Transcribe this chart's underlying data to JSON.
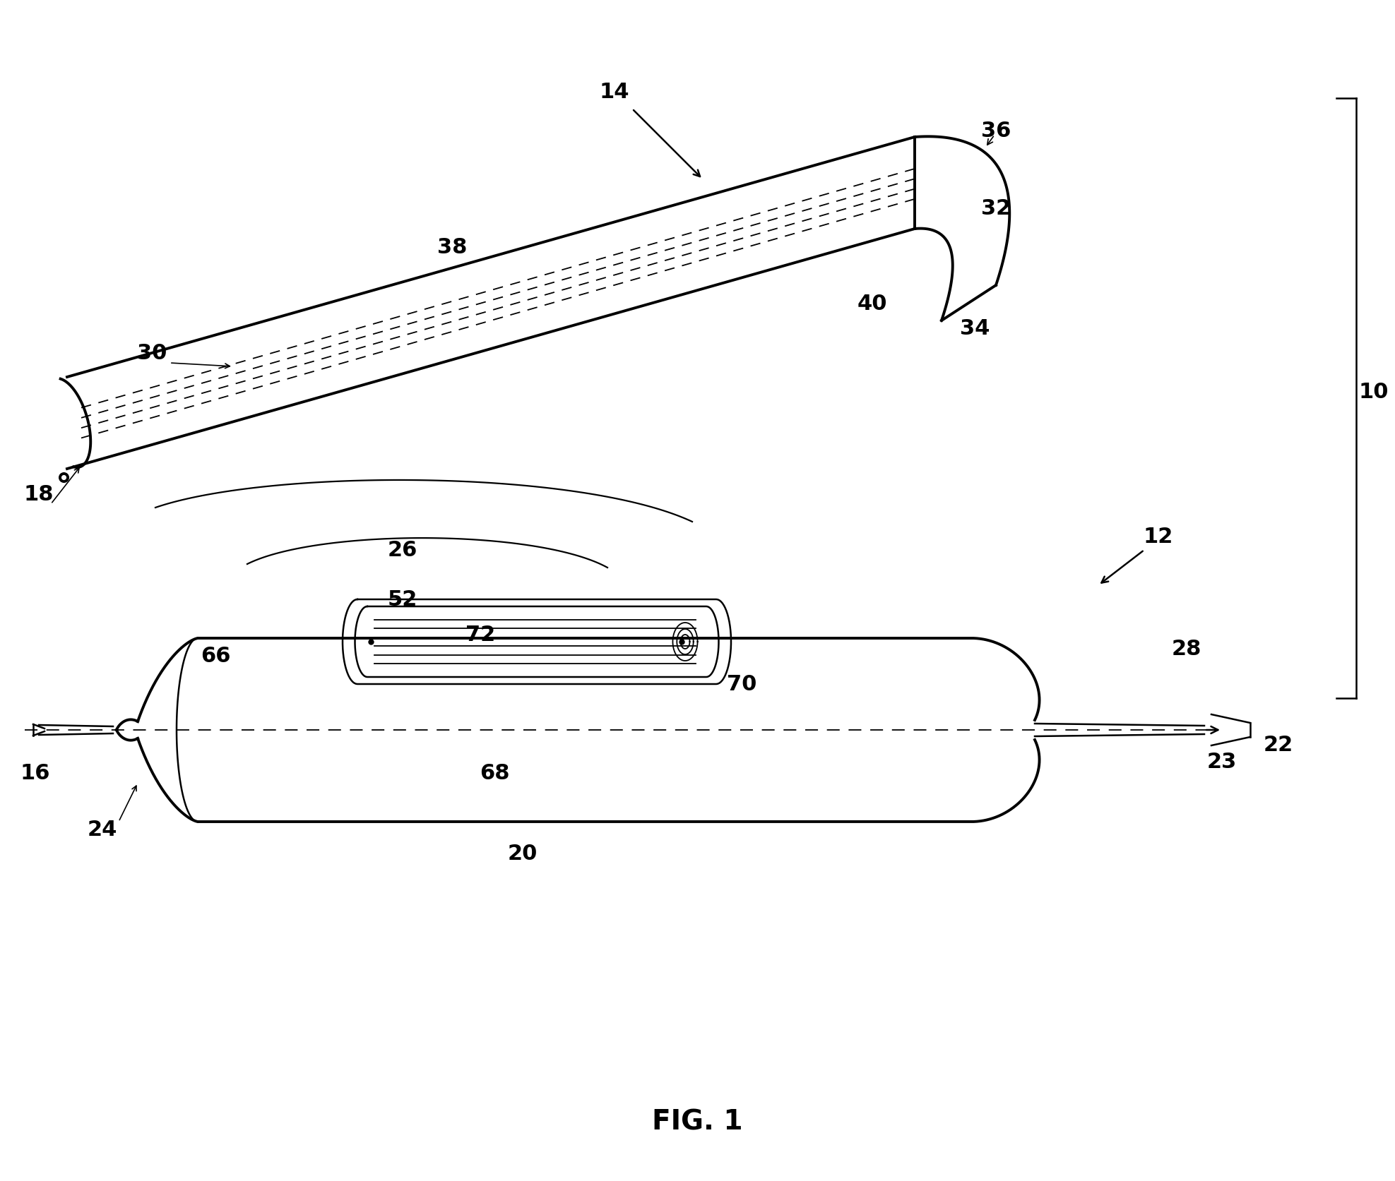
{
  "bg_color": "#ffffff",
  "lc": "#000000",
  "fig_label": "FIG. 1",
  "lw_thick": 2.8,
  "lw_med": 1.8,
  "lw_thin": 1.3,
  "fontsize_label": 22,
  "fontsize_fig": 28
}
